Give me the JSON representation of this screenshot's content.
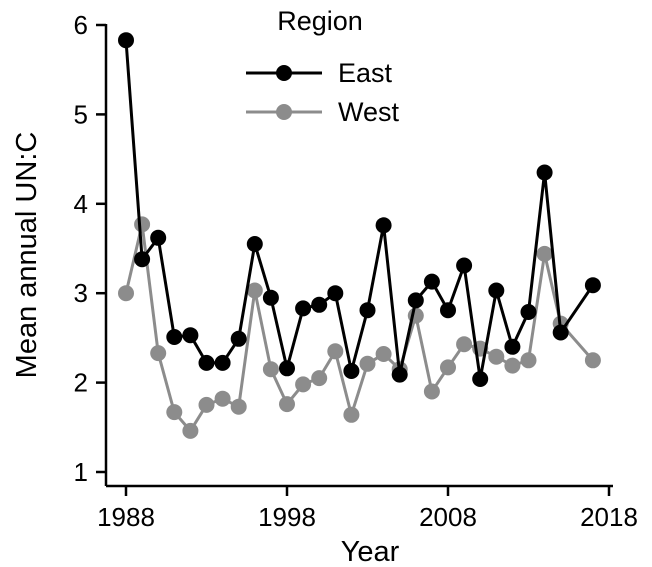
{
  "chart_data": {
    "type": "line",
    "xlabel": "Year",
    "ylabel": "Mean annual UN:C",
    "xlim": [
      1988,
      2018
    ],
    "ylim": [
      1,
      6
    ],
    "xticks": [
      1988,
      1998,
      2008,
      2018
    ],
    "yticks": [
      1,
      2,
      3,
      4,
      5,
      6
    ],
    "grid": false,
    "legend": {
      "title": "Region",
      "placement": "top-center"
    },
    "series": [
      {
        "name": "East",
        "color": "#000000",
        "x": [
          1988,
          1989,
          1990,
          1991,
          1992,
          1993,
          1994,
          1995,
          1996,
          1997,
          1998,
          1999,
          2000,
          2001,
          2002,
          2003,
          2004,
          2005,
          2006,
          2007,
          2008,
          2009,
          2010,
          2011,
          2012,
          2013,
          2014,
          2015,
          2017
        ],
        "y": [
          5.83,
          3.38,
          3.62,
          2.51,
          2.53,
          2.22,
          2.22,
          2.49,
          3.55,
          2.95,
          2.16,
          2.83,
          2.87,
          3.0,
          2.13,
          2.81,
          3.76,
          2.09,
          2.92,
          3.13,
          2.81,
          3.31,
          2.04,
          3.03,
          2.4,
          2.79,
          4.35,
          2.56,
          3.09
        ]
      },
      {
        "name": "West",
        "color": "#8c8c8c",
        "x": [
          1988,
          1989,
          1990,
          1991,
          1992,
          1993,
          1994,
          1995,
          1996,
          1997,
          1998,
          1999,
          2000,
          2001,
          2002,
          2003,
          2004,
          2005,
          2006,
          2007,
          2008,
          2009,
          2010,
          2011,
          2012,
          2013,
          2014,
          2015,
          2017
        ],
        "y": [
          3.0,
          3.77,
          2.33,
          1.67,
          1.46,
          1.75,
          1.82,
          1.73,
          3.03,
          2.15,
          1.76,
          1.98,
          2.05,
          2.35,
          1.64,
          2.21,
          2.32,
          2.15,
          2.75,
          1.9,
          2.17,
          2.43,
          2.38,
          2.29,
          2.19,
          2.25,
          3.44,
          2.66,
          2.25
        ]
      }
    ]
  }
}
